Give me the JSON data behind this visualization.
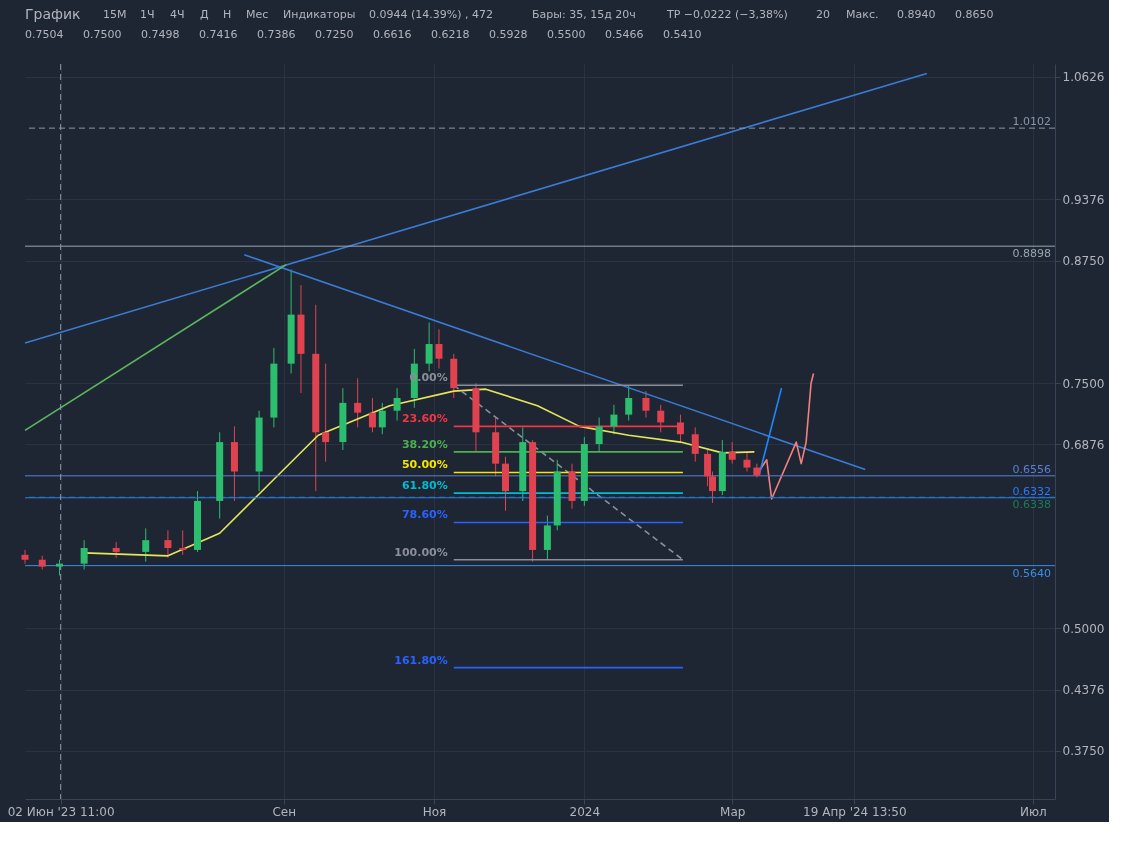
{
  "chart_data": {
    "type": "candlestick",
    "title": "График",
    "x": [
      "2023-05-19",
      "2023-05-26",
      "2023-06-02",
      "2023-06-12",
      "2023-06-25",
      "2023-07-07",
      "2023-07-16",
      "2023-07-22",
      "2023-07-28",
      "2023-08-06",
      "2023-08-12",
      "2023-08-22",
      "2023-08-28",
      "2023-09-04",
      "2023-09-08",
      "2023-09-14",
      "2023-09-18",
      "2023-09-25",
      "2023-10-01",
      "2023-10-07",
      "2023-10-11",
      "2023-10-17",
      "2023-10-24",
      "2023-10-30",
      "2023-11-03",
      "2023-11-09",
      "2023-11-18",
      "2023-11-26",
      "2023-11-30",
      "2023-12-07",
      "2023-12-11",
      "2023-12-17",
      "2023-12-21",
      "2023-12-27",
      "2024-01-01",
      "2024-01-07",
      "2024-01-13",
      "2024-01-19",
      "2024-01-26",
      "2024-02-01",
      "2024-02-09",
      "2024-02-15",
      "2024-02-20",
      "2024-02-22",
      "2024-02-26",
      "2024-03-01",
      "2024-03-07",
      "2024-03-11"
    ],
    "ohlc": [
      [
        0.575,
        0.58,
        0.566,
        0.57
      ],
      [
        0.57,
        0.574,
        0.56,
        0.563
      ],
      [
        0.563,
        0.57,
        0.554,
        0.566
      ],
      [
        0.566,
        0.59,
        0.56,
        0.582
      ],
      [
        0.582,
        0.588,
        0.572,
        0.578
      ],
      [
        0.578,
        0.602,
        0.568,
        0.59
      ],
      [
        0.59,
        0.6,
        0.572,
        0.582
      ],
      [
        0.582,
        0.6,
        0.575,
        0.58
      ],
      [
        0.58,
        0.64,
        0.578,
        0.63
      ],
      [
        0.63,
        0.7,
        0.612,
        0.69
      ],
      [
        0.69,
        0.706,
        0.63,
        0.66
      ],
      [
        0.66,
        0.722,
        0.64,
        0.715
      ],
      [
        0.715,
        0.786,
        0.705,
        0.77
      ],
      [
        0.77,
        0.866,
        0.76,
        0.82
      ],
      [
        0.82,
        0.85,
        0.74,
        0.78
      ],
      [
        0.78,
        0.83,
        0.64,
        0.7
      ],
      [
        0.7,
        0.77,
        0.67,
        0.69
      ],
      [
        0.69,
        0.745,
        0.682,
        0.73
      ],
      [
        0.73,
        0.755,
        0.705,
        0.72
      ],
      [
        0.72,
        0.735,
        0.7,
        0.705
      ],
      [
        0.705,
        0.73,
        0.698,
        0.722
      ],
      [
        0.722,
        0.745,
        0.712,
        0.735
      ],
      [
        0.735,
        0.785,
        0.725,
        0.77
      ],
      [
        0.77,
        0.812,
        0.762,
        0.79
      ],
      [
        0.79,
        0.805,
        0.765,
        0.775
      ],
      [
        0.775,
        0.78,
        0.735,
        0.745
      ],
      [
        0.745,
        0.75,
        0.68,
        0.7
      ],
      [
        0.7,
        0.715,
        0.655,
        0.668
      ],
      [
        0.668,
        0.675,
        0.62,
        0.64
      ],
      [
        0.64,
        0.705,
        0.63,
        0.69
      ],
      [
        0.69,
        0.692,
        0.568,
        0.58
      ],
      [
        0.58,
        0.615,
        0.57,
        0.605
      ],
      [
        0.605,
        0.672,
        0.6,
        0.66
      ],
      [
        0.66,
        0.668,
        0.622,
        0.63
      ],
      [
        0.63,
        0.695,
        0.625,
        0.688
      ],
      [
        0.688,
        0.715,
        0.68,
        0.706
      ],
      [
        0.706,
        0.728,
        0.698,
        0.718
      ],
      [
        0.718,
        0.748,
        0.712,
        0.735
      ],
      [
        0.735,
        0.742,
        0.715,
        0.722
      ],
      [
        0.722,
        0.728,
        0.7,
        0.71
      ],
      [
        0.71,
        0.718,
        0.69,
        0.698
      ],
      [
        0.698,
        0.705,
        0.67,
        0.678
      ],
      [
        0.678,
        0.682,
        0.645,
        0.655
      ],
      [
        0.655,
        0.66,
        0.628,
        0.64
      ],
      [
        0.64,
        0.692,
        0.636,
        0.68
      ],
      [
        0.68,
        0.69,
        0.668,
        0.672
      ],
      [
        0.672,
        0.68,
        0.66,
        0.664
      ],
      [
        0.664,
        0.668,
        0.654,
        0.656
      ]
    ],
    "colors": [
      "#e0434f",
      "#e0434f",
      "#2dbd6e",
      "#2dbd6e",
      "#e0434f",
      "#2dbd6e",
      "#e0434f",
      "#e0434f",
      "#2dbd6e",
      "#2dbd6e",
      "#e0434f",
      "#2dbd6e",
      "#2dbd6e",
      "#2dbd6e",
      "#e0434f",
      "#e0434f",
      "#e0434f",
      "#2dbd6e",
      "#e0434f",
      "#e0434f",
      "#2dbd6e",
      "#2dbd6e",
      "#2dbd6e",
      "#2dbd6e",
      "#e0434f",
      "#e0434f",
      "#e0434f",
      "#e0434f",
      "#e0434f",
      "#2dbd6e",
      "#e0434f",
      "#2dbd6e",
      "#2dbd6e",
      "#e0434f",
      "#2dbd6e",
      "#2dbd6e",
      "#2dbd6e",
      "#2dbd6e",
      "#e0434f",
      "#e0434f",
      "#e0434f",
      "#e0434f",
      "#e0434f",
      "#e0434f",
      "#2dbd6e",
      "#e0434f",
      "#e0434f",
      "#e0434f"
    ],
    "series": [
      {
        "type": "line",
        "color": "#e6e65a",
        "x": [
          "2023-06-12",
          "2023-07-16",
          "2023-08-06",
          "2023-08-26",
          "2023-09-15",
          "2023-10-14",
          "2023-11-09",
          "2023-11-22",
          "2023-12-13",
          "2023-12-30",
          "2024-01-19",
          "2024-02-09",
          "2024-02-26",
          "2024-03-10"
        ],
        "values": [
          0.577,
          0.574,
          0.597,
          0.647,
          0.697,
          0.727,
          0.742,
          0.744,
          0.727,
          0.706,
          0.697,
          0.69,
          0.679,
          0.68
        ]
      },
      {
        "type": "line",
        "color": "#3a7bd5",
        "x": [
          "2023-08-16",
          "2024-04-24"
        ],
        "values": [
          0.881,
          0.662
        ]
      },
      {
        "type": "line",
        "color": "#3a7bd5",
        "x": [
          "2023-05-19",
          "2024-05-19"
        ],
        "values": [
          0.791,
          1.066
        ]
      },
      {
        "type": "line",
        "color": "#5cb85c",
        "x": [
          "2023-05-19",
          "2023-09-02"
        ],
        "values": [
          0.702,
          0.871
        ]
      },
      {
        "type": "line",
        "color": "#f28080",
        "x": [
          "2024-03-11",
          "2024-03-15",
          "2024-03-17",
          "2024-03-27",
          "2024-03-29",
          "2024-03-31",
          "2024-04-02",
          "2024-04-03"
        ],
        "values": [
          0.657,
          0.672,
          0.632,
          0.69,
          0.668,
          0.69,
          0.75,
          0.76
        ]
      },
      {
        "type": "line",
        "color": "#1e88ff",
        "x": [
          "2024-03-12",
          "2024-03-21"
        ],
        "values": [
          0.657,
          0.745
        ]
      },
      {
        "type": "line",
        "color": "#8a8f99",
        "line_style": "dashed",
        "x": [
          "2023-11-09",
          "2024-02-10"
        ],
        "values": [
          0.748,
          0.57
        ]
      },
      {
        "type": "line",
        "name": "0.00%",
        "color": "#8a8f99",
        "x": [
          "2023-11-09",
          "2024-02-10"
        ],
        "values": [
          0.748,
          0.748
        ]
      },
      {
        "type": "line",
        "name": "23.60%",
        "color": "#f23645",
        "x": [
          "2023-11-09",
          "2024-02-10"
        ],
        "values": [
          0.706,
          0.706
        ]
      },
      {
        "type": "line",
        "name": "38.20%",
        "color": "#4caf50",
        "x": [
          "2023-11-09",
          "2024-02-10"
        ],
        "values": [
          0.68,
          0.68
        ]
      },
      {
        "type": "line",
        "name": "50.00%",
        "color": "#f7e600",
        "x": [
          "2023-11-09",
          "2024-02-10"
        ],
        "values": [
          0.659,
          0.659
        ]
      },
      {
        "type": "line",
        "name": "61.80%",
        "color": "#00bcd4",
        "x": [
          "2023-11-09",
          "2024-02-10"
        ],
        "values": [
          0.638,
          0.638
        ]
      },
      {
        "type": "line",
        "name": "78.60%",
        "color": "#2962ff",
        "x": [
          "2023-11-09",
          "2024-02-10"
        ],
        "values": [
          0.608,
          0.608
        ]
      },
      {
        "type": "line",
        "name": "100.00%",
        "color": "#8a8f99",
        "x": [
          "2023-11-09",
          "2024-02-10"
        ],
        "values": [
          0.57,
          0.57
        ]
      },
      {
        "type": "line",
        "name": "161.80%",
        "color": "#2962ff",
        "x": [
          "2023-11-09",
          "2024-02-10"
        ],
        "values": [
          0.46,
          0.46
        ]
      }
    ],
    "ref_lines": [
      {
        "axis": "y",
        "value": 1.0102,
        "label": "1.0102",
        "color": "#8a96a8",
        "line_style": "dashed"
      },
      {
        "axis": "y",
        "value": 0.8898,
        "label": "0.8898",
        "color": "#9aa5b1"
      },
      {
        "axis": "y",
        "value": 0.6556,
        "label": "0.6556",
        "color": "#5b7fd6"
      },
      {
        "axis": "y",
        "value": 0.6338,
        "label": "0.6338",
        "color": "#1f7a57",
        "line_style": "dashed"
      },
      {
        "axis": "y",
        "value": 0.6332,
        "label": "0.6332",
        "color": "#2979ff"
      },
      {
        "axis": "y",
        "value": 0.564,
        "label": "0.5640",
        "color": "#3a8ee6"
      },
      {
        "axis": "x",
        "value": "2023-06-02T11:00",
        "color": "#8a96a8",
        "line_style": "dashed"
      }
    ],
    "annotations": [
      "15М",
      "1Ч",
      "4Ч",
      "Д",
      "Н",
      "Мес",
      "Индикаторы",
      "0.0944 (14.39%) , 472",
      "Бары: 35, 15д 20ч",
      "TP −0,0222 (−3,38%)",
      "20",
      "Макс.",
      "0.8940",
      "0.8650",
      "0.7504",
      "0.7500",
      "0.7498",
      "0.7416",
      "0.7386",
      "0.7250",
      "0.6616",
      "0.6218",
      "0.5928",
      "0.5500",
      "0.5466",
      "0.5410"
    ],
    "xlim": [
      "2023-05-19",
      "2024-07-10"
    ],
    "xticks": [
      {
        "value": "2023-06-02T11:00",
        "label": "02 Июн '23  11:00"
      },
      {
        "value": "2023-09-01",
        "label": "Сен"
      },
      {
        "value": "2023-11-01",
        "label": "Ноя"
      },
      {
        "value": "2024-01-01",
        "label": "2024"
      },
      {
        "value": "2024-03-01",
        "label": "Мар"
      },
      {
        "value": "2024-04-19T13:50",
        "label": "19 Апр '24  13:50"
      },
      {
        "value": "2024-07-01",
        "label": "Июл"
      }
    ],
    "ylim": [
      0.326,
      1.0756
    ],
    "yticks": [
      1.0626,
      0.9376,
      {
        "value": 0.875,
        "label": "0.8750"
      },
      {
        "value": 0.75,
        "label": "0.7500"
      },
      0.6876,
      {
        "value": 0.5,
        "label": "0.5000"
      },
      0.4376,
      {
        "value": 0.375,
        "label": "0.3750"
      }
    ],
    "grid": true
  }
}
